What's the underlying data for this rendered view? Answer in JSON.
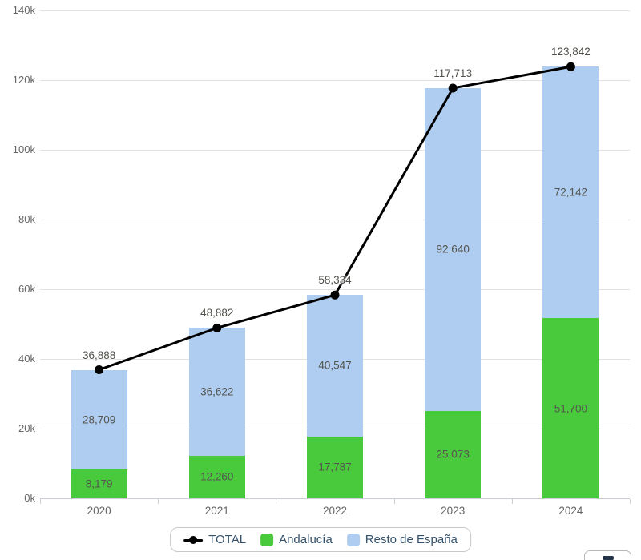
{
  "chart_data": {
    "type": "bar",
    "subtype": "stacked-column-with-line-overlay",
    "title": "",
    "categories": [
      "2020",
      "2021",
      "2022",
      "2023",
      "2024"
    ],
    "series": [
      {
        "name": "Andalucía",
        "type": "column",
        "stack_position": "bottom",
        "color": "#49c93c",
        "values": [
          8179,
          12260,
          17787,
          25073,
          51700
        ]
      },
      {
        "name": "Resto de España",
        "type": "column",
        "stack_position": "top",
        "color": "#aecdf0",
        "values": [
          28709,
          36622,
          40547,
          92640,
          72142
        ]
      },
      {
        "name": "TOTAL",
        "type": "line",
        "color": "#000000",
        "values": [
          36888,
          48882,
          58334,
          117713,
          123842
        ]
      }
    ],
    "y_axis": {
      "min": 0,
      "max": 140000,
      "tick_interval": 20000,
      "tick_labels": [
        "0k",
        "20k",
        "40k",
        "60k",
        "80k",
        "100k",
        "120k",
        "140k"
      ]
    },
    "x_axis": {
      "tick_labels": [
        "2020",
        "2021",
        "2022",
        "2023",
        "2024"
      ]
    },
    "legend": {
      "position": "bottom",
      "items": [
        "TOTAL",
        "Andalucía",
        "Resto de España"
      ]
    },
    "grid": true,
    "data_labels_inside_bars": true,
    "total_labels_above_line_points": true
  },
  "colors": {
    "andalucia": "#49c93c",
    "resto_de_espana": "#aecdf0",
    "total_line": "#000000",
    "gridline": "#e1e1e1",
    "axis_labels": "#666666",
    "legend_text": "#33516b"
  }
}
